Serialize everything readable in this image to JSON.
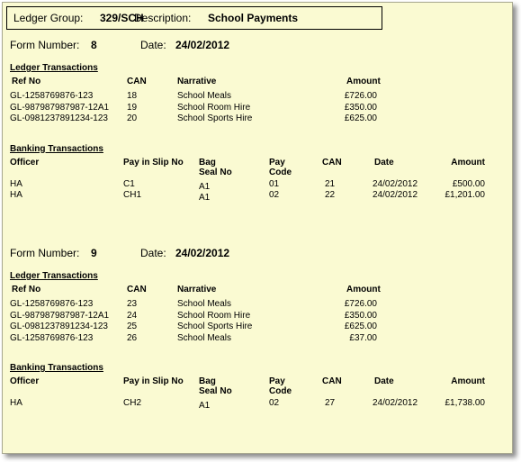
{
  "header": {
    "ledger_group_label": "Ledger Group:",
    "ledger_group_value": "329/SCH",
    "description_label": "Description:",
    "description_value": "School Payments"
  },
  "labels": {
    "form_number": "Form Number:",
    "date": "Date:",
    "ledger_transactions": "Ledger Transactions",
    "banking_transactions": "Banking Transactions",
    "ledger_columns": [
      "Ref No",
      "CAN",
      "Narrative",
      "Amount"
    ],
    "banking_columns": [
      "Officer",
      "Pay in Slip No",
      "Bag",
      "Seal No",
      "Pay",
      "Code",
      "CAN",
      "Date",
      "Amount"
    ]
  },
  "forms": [
    {
      "form_number": "8",
      "date": "24/02/2012",
      "ledger": [
        {
          "ref": "GL-1258769876-123",
          "can": "18",
          "narrative": "School Meals",
          "amount": "£726.00"
        },
        {
          "ref": "GL-987987987987-12A1",
          "can": "19",
          "narrative": "School Room Hire",
          "amount": "£350.00"
        },
        {
          "ref": "GL-0981237891234-123",
          "can": "20",
          "narrative": "School Sports Hire",
          "amount": "£625.00"
        }
      ],
      "banking": [
        {
          "officer": "HA",
          "slip": "C1",
          "bag_seal": "A1",
          "pay_code": "01",
          "can": "21",
          "date": "24/02/2012",
          "amount": "£500.00"
        },
        {
          "officer": "HA",
          "slip": "CH1",
          "bag_seal": "A1",
          "pay_code": "02",
          "can": "22",
          "date": "24/02/2012",
          "amount": "£1,201.00"
        }
      ]
    },
    {
      "form_number": "9",
      "date": "24/02/2012",
      "ledger": [
        {
          "ref": "GL-1258769876-123",
          "can": "23",
          "narrative": "School Meals",
          "amount": "£726.00"
        },
        {
          "ref": "GL-987987987987-12A1",
          "can": "24",
          "narrative": "School Room Hire",
          "amount": "£350.00"
        },
        {
          "ref": "GL-0981237891234-123",
          "can": "25",
          "narrative": "School Sports Hire",
          "amount": "£625.00"
        },
        {
          "ref": "GL-1258769876-123",
          "can": "26",
          "narrative": "School Meals",
          "amount": "£37.00"
        }
      ],
      "banking": [
        {
          "officer": "HA",
          "slip": "CH2",
          "bag_seal": "A1",
          "pay_code": "02",
          "can": "27",
          "date": "24/02/2012",
          "amount": "£1,738.00"
        }
      ]
    }
  ]
}
